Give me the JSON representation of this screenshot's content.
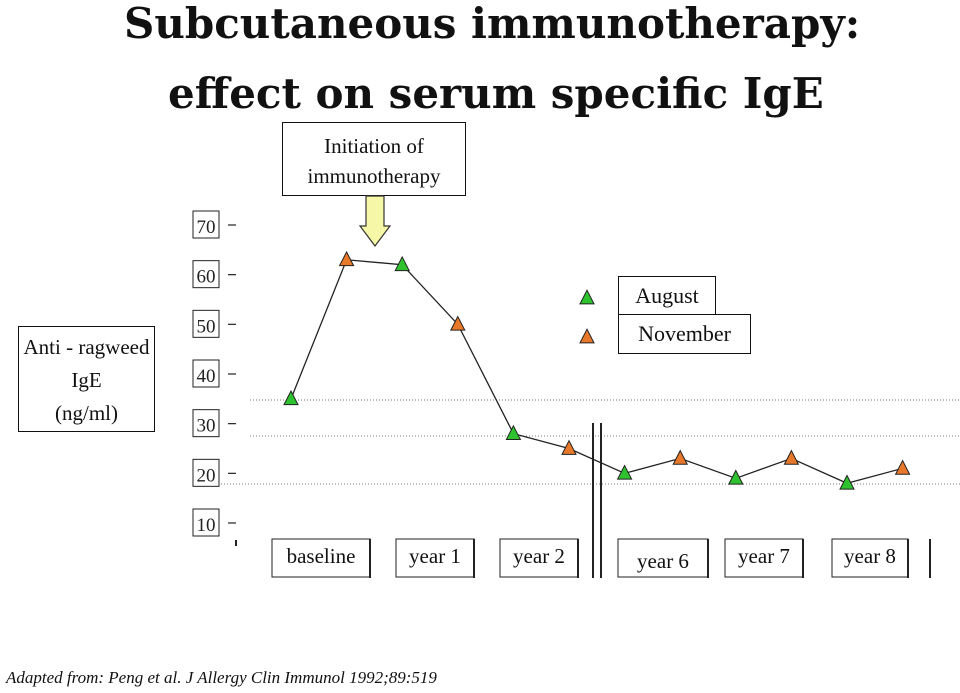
{
  "title": {
    "line1": "Subcutaneous immunotherapy:",
    "line2": "effect on serum specific IgE"
  },
  "annotation": {
    "line1": "Initiation of",
    "line2": "immunotherapy"
  },
  "source": "Adapted from:  Peng et al. J Allergy Clin Immunol 1992;89:519",
  "colors": {
    "august": "#2fc22f",
    "november": "#e8782a",
    "arrow": "#f7f7a8"
  },
  "chart_data": {
    "type": "line",
    "ylabel": [
      "Anti - ragweed",
      "IgE",
      "(ng/ml)"
    ],
    "yticks": [
      10,
      20,
      30,
      40,
      50,
      60,
      70
    ],
    "ylim": [
      10,
      70
    ],
    "categories": [
      "baseline",
      "year 1",
      "year 2",
      "year 6",
      "year 7",
      "year 8"
    ],
    "axis_break_after": "year 2",
    "legend_position": "right",
    "series": [
      {
        "name": "August",
        "color": "#2fc22f"
      },
      {
        "name": "November",
        "color": "#e8782a"
      }
    ],
    "points": [
      {
        "category": "baseline",
        "season": "August",
        "value": 35
      },
      {
        "category": "baseline",
        "season": "November",
        "value": 63
      },
      {
        "category": "year 1",
        "season": "August",
        "value": 62
      },
      {
        "category": "year 1",
        "season": "November",
        "value": 50
      },
      {
        "category": "year 2",
        "season": "August",
        "value": 28
      },
      {
        "category": "year 2",
        "season": "November",
        "value": 25
      },
      {
        "category": "year 6",
        "season": "August",
        "value": 20
      },
      {
        "category": "year 6",
        "season": "November",
        "value": 23
      },
      {
        "category": "year 7",
        "season": "August",
        "value": 19
      },
      {
        "category": "year 7",
        "season": "November",
        "value": 23
      },
      {
        "category": "year 8",
        "season": "August",
        "value": 18
      },
      {
        "category": "year 8",
        "season": "November",
        "value": 21
      }
    ]
  }
}
